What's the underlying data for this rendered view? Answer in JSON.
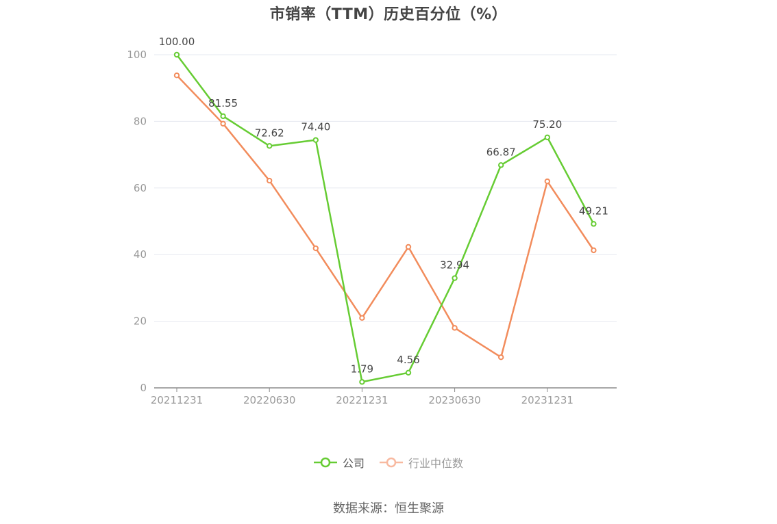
{
  "title": "市销率（TTM）历史百分位（%）",
  "source": "数据来源：恒生聚源",
  "chart_data": {
    "type": "line",
    "title": "市销率（TTM）历史百分位（%）",
    "x": [
      "20211231",
      "20220331",
      "20220630",
      "20220930",
      "20221231",
      "20230331",
      "20230630",
      "20230930",
      "20231231",
      "20240331"
    ],
    "x_tick_labels": [
      "20211231",
      "20220630",
      "20221231",
      "20230630",
      "20231231"
    ],
    "ylim": [
      0,
      100
    ],
    "y_ticks": [
      0,
      20,
      40,
      60,
      80,
      100
    ],
    "grid": true,
    "legend_position": "bottom",
    "series": [
      {
        "name": "公司",
        "color": "#66cc33",
        "values": [
          100.0,
          81.55,
          72.62,
          74.4,
          1.79,
          4.56,
          32.94,
          66.87,
          75.2,
          49.21
        ],
        "data_labels": [
          "100.00",
          "81.55",
          "72.62",
          "74.40",
          "1.79",
          "4.56",
          "32.94",
          "66.87",
          "75.20",
          "49.21"
        ]
      },
      {
        "name": "行业中位数",
        "color": "#f28c5c",
        "values": [
          93.8,
          79.3,
          62.2,
          41.9,
          21.0,
          42.3,
          18.0,
          9.2,
          62.0,
          41.3
        ]
      }
    ]
  }
}
